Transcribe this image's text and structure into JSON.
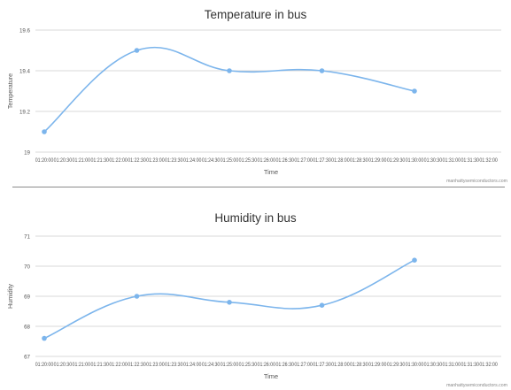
{
  "x_tick_labels": [
    "01:20:00",
    "01:20:30",
    "01:21:00",
    "01:21:30",
    "01:22:00",
    "01:22:30",
    "01:23:00",
    "01:23:30",
    "01:24:00",
    "01:24:30",
    "01:25:00",
    "01:25:30",
    "01:26:00",
    "01:26:30",
    "01:27:00",
    "01:27:30",
    "01:28:00",
    "01:28:30",
    "01:29:00",
    "01:29:30",
    "01:30:00",
    "01:30:30",
    "01:31:00",
    "01:31:30",
    "01:32:00"
  ],
  "chart_data": [
    {
      "type": "line",
      "title": "Temperature in bus",
      "xlabel": "Time",
      "ylabel": "Temperature",
      "credit": "manhattysemiconductors.com",
      "ylim": [
        19,
        19.6
      ],
      "yticks": [
        "19",
        "19.2",
        "19.4",
        "19.6"
      ],
      "grid": true,
      "series": [
        {
          "color": "#7cb5ec",
          "x": [
            "01:20:00",
            "01:22:30",
            "01:25:00",
            "01:27:30",
            "01:30:00"
          ],
          "values": [
            19.1,
            19.5,
            19.4,
            19.4,
            19.3
          ]
        }
      ]
    },
    {
      "type": "line",
      "title": "Humidity in bus",
      "xlabel": "Time",
      "ylabel": "Humidity",
      "credit": "manhattysemiconductors.com",
      "ylim": [
        67,
        71
      ],
      "yticks": [
        "67",
        "68",
        "69",
        "70",
        "71"
      ],
      "grid": true,
      "series": [
        {
          "color": "#7cb5ec",
          "x": [
            "01:20:00",
            "01:22:30",
            "01:25:00",
            "01:27:30",
            "01:30:00"
          ],
          "values": [
            67.6,
            69.0,
            68.8,
            68.7,
            70.2
          ]
        }
      ]
    }
  ]
}
